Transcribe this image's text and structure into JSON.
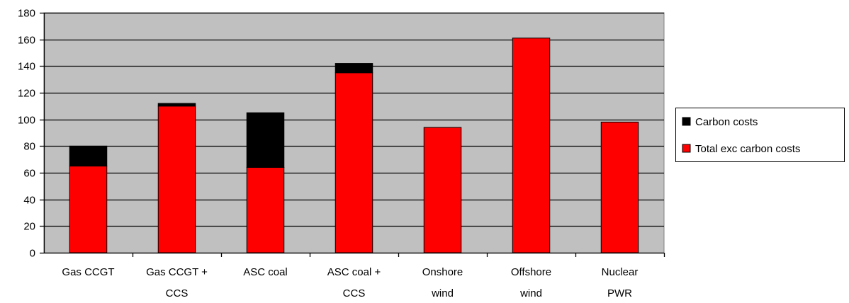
{
  "chart_data": {
    "type": "bar",
    "stacked": true,
    "categories": [
      [
        "Gas CCGT"
      ],
      [
        "Gas CCGT +",
        "CCS"
      ],
      [
        "ASC coal"
      ],
      [
        "ASC coal +",
        "CCS"
      ],
      [
        "Onshore",
        "wind"
      ],
      [
        "Offshore",
        "wind"
      ],
      [
        "Nuclear",
        "PWR"
      ]
    ],
    "series": [
      {
        "name": "Total exc carbon costs",
        "color": "#ff0000",
        "values": [
          65,
          110,
          64,
          135,
          94,
          161,
          98
        ]
      },
      {
        "name": "Carbon costs",
        "color": "#000000",
        "values": [
          15,
          2,
          41,
          7,
          0,
          0,
          0
        ]
      }
    ],
    "legend_order": [
      "Carbon costs",
      "Total exc carbon costs"
    ],
    "ylim": [
      0,
      180
    ],
    "yticks": [
      "0",
      "20",
      "40",
      "60",
      "80",
      "100",
      "120",
      "140",
      "160",
      "180"
    ],
    "grid": true,
    "plot_background": "#c0c0c0",
    "legend_position": "right",
    "title": "",
    "xlabel": "",
    "ylabel": ""
  }
}
